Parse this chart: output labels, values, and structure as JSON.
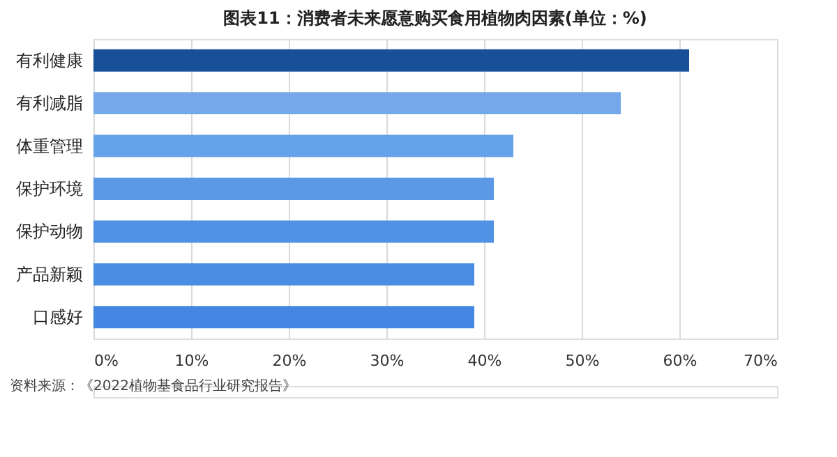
{
  "chart_data": {
    "type": "bar",
    "orientation": "horizontal",
    "title": "图表11：消费者未来愿意购买食用植物肉因素(单位：%)",
    "categories": [
      "有利健康",
      "有利减脂",
      "体重管理",
      "保护环境",
      "保护动物",
      "产品新颖",
      "口感好"
    ],
    "values": [
      61,
      54,
      43,
      41,
      41,
      39,
      39
    ],
    "colors": [
      "#174f99",
      "#75a8ea",
      "#66a2e8",
      "#5b98e6",
      "#5092e4",
      "#4a8ee3",
      "#4387e2"
    ],
    "xlim": [
      0,
      70
    ],
    "xticks": [
      {
        "value": 0,
        "label": "0%"
      },
      {
        "value": 10,
        "label": "10%"
      },
      {
        "value": 20,
        "label": "20%"
      },
      {
        "value": 30,
        "label": "30%"
      },
      {
        "value": 40,
        "label": "40%"
      },
      {
        "value": 50,
        "label": "50%"
      },
      {
        "value": 60,
        "label": "60%"
      },
      {
        "value": 70,
        "label": "70%"
      }
    ],
    "grid": "x",
    "annotations": [
      "资料来源：《2022植物基食品行业研究报告》"
    ]
  }
}
